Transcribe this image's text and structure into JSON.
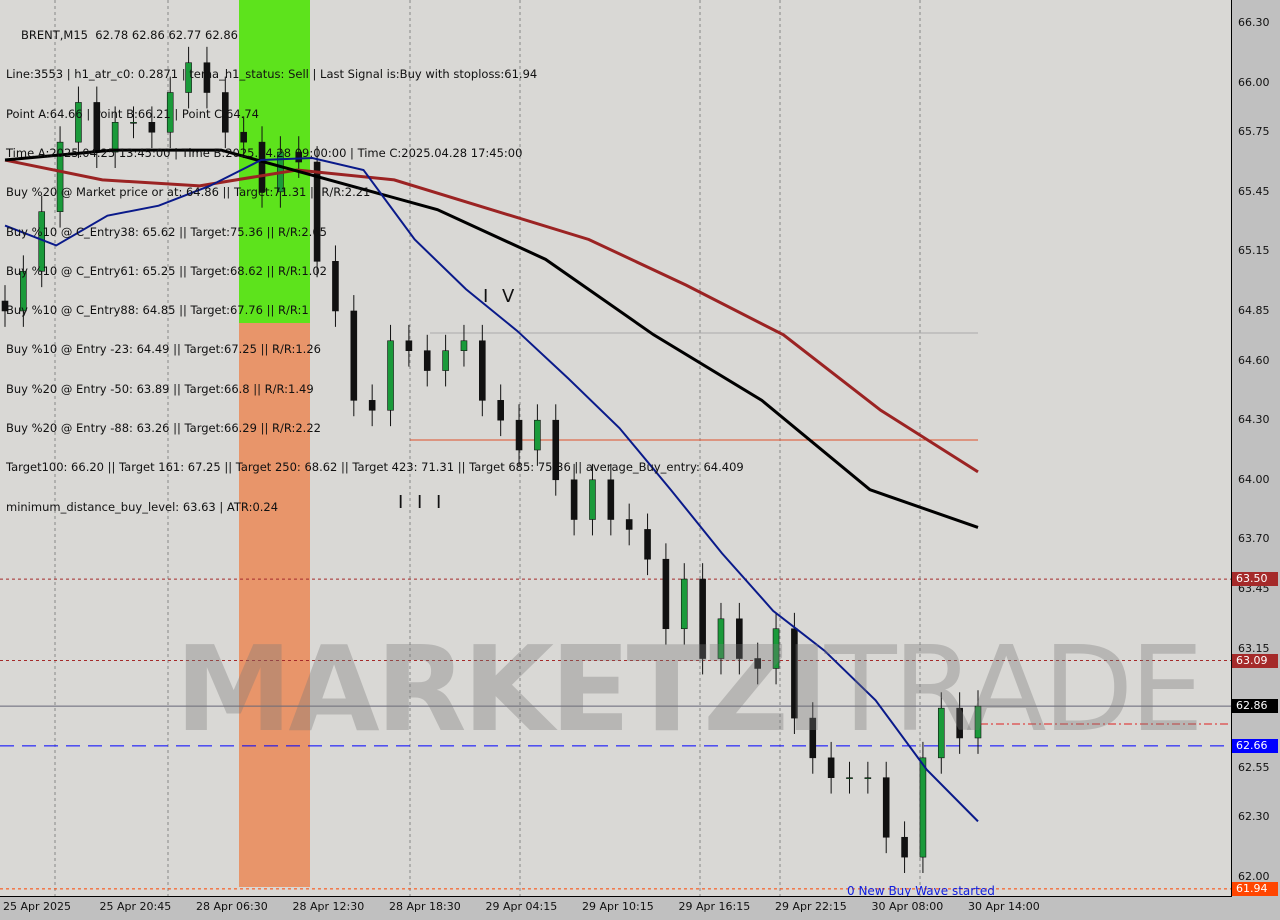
{
  "header": {
    "title": "BRENT,M15  62.78 62.86 62.77 62.86",
    "lines": [
      "Line:3553 | h1_atr_c0: 0.2871 | tema_h1_status: Sell | Last Signal is:Buy with stoploss:61.94",
      "Point A:64.66 | Point B:66.21 | Point C:64.74",
      "Time A:2025.04.25 13:45:00 | Time B:2025.04.28 09:00:00 | Time C:2025.04.28 17:45:00",
      "Buy %20 @ Market price or at: 64.86 || Target:71.31 || R/R:2.21",
      "Buy %10 @ C_Entry38: 65.62 || Target:75.36 || R/R:2.65",
      "Buy %10 @ C_Entry61: 65.25 || Target:68.62 || R/R:1.02",
      "Buy %10 @ C_Entry88: 64.85 || Target:67.76 || R/R:1",
      "Buy %10 @ Entry -23: 64.49 || Target:67.25 || R/R:1.26",
      "Buy %20 @ Entry -50: 63.89 || Target:66.8 || R/R:1.49",
      "Buy %20 @ Entry -88: 63.26 || Target:66.29 || R/R:2.22",
      "Target100: 66.20 || Target 161: 67.25 || Target 250: 68.62 || Target 423: 71.31 || Target 685: 75.36 || average_Buy_entry: 64.409",
      "minimum_distance_buy_level: 63.63 | ATR:0.24"
    ]
  },
  "annotations": {
    "wave_iv": "I V",
    "wave_iii": "I I I",
    "buy_wave": "0 New Buy Wave started"
  },
  "watermark": {
    "bold": "MARKETZI",
    "light": "TRADE"
  },
  "colors": {
    "background": "#d9d8d5",
    "bull": "#1a9a3a",
    "bear": "#111111",
    "ma_blue": "#0a1a8a",
    "ma_black": "#000000",
    "ma_red": "#9b2323",
    "zone_green": "#5de31c",
    "zone_orange": "#e8956a"
  },
  "chart_data": {
    "type": "candlestick",
    "symbol": "BRENT",
    "timeframe": "M15",
    "ylim": [
      61.9,
      66.45
    ],
    "y_ticks": [
      "66.30",
      "66.00",
      "65.75",
      "65.45",
      "65.15",
      "64.85",
      "64.60",
      "64.30",
      "64.00",
      "63.70",
      "63.45",
      "63.15",
      "62.55",
      "62.30",
      "62.00"
    ],
    "x_ticks": [
      "25 Apr 2025",
      "25 Apr 20:45",
      "28 Apr 06:30",
      "28 Apr 12:30",
      "28 Apr 18:30",
      "29 Apr 04:15",
      "29 Apr 10:15",
      "29 Apr 16:15",
      "29 Apr 22:15",
      "30 Apr 08:00",
      "30 Apr 14:00"
    ],
    "closes": [
      64.85,
      65.05,
      65.35,
      65.7,
      65.9,
      65.65,
      65.8,
      65.8,
      65.75,
      65.95,
      66.1,
      65.95,
      65.75,
      65.7,
      65.45,
      65.65,
      65.6,
      65.1,
      64.85,
      64.4,
      64.35,
      64.7,
      64.65,
      64.55,
      64.65,
      64.7,
      64.4,
      64.3,
      64.15,
      64.3,
      64.0,
      63.8,
      64.0,
      63.8,
      63.75,
      63.6,
      63.25,
      63.5,
      63.1,
      63.3,
      63.1,
      63.05,
      63.25,
      62.8,
      62.6,
      62.5,
      62.5,
      62.5,
      62.2,
      62.1,
      62.6,
      62.85,
      62.7,
      62.86
    ],
    "ma_blue": [
      65.28,
      65.18,
      65.33,
      65.38,
      65.48,
      65.61,
      65.62,
      65.56,
      65.21,
      64.96,
      64.75,
      64.51,
      64.26,
      63.95,
      63.63,
      63.34,
      63.14,
      62.89,
      62.54,
      62.28
    ],
    "ma_red": [
      65.61,
      65.51,
      65.48,
      65.56,
      65.51,
      65.36,
      65.21,
      64.98,
      64.73,
      64.35,
      64.04
    ],
    "ma_black": [
      65.61,
      65.66,
      65.66,
      65.51,
      65.36,
      65.11,
      64.73,
      64.4,
      63.95,
      63.76
    ],
    "levels": [
      {
        "label": "63.50",
        "price": 63.5,
        "color": "#a52a2a",
        "style": "dotted"
      },
      {
        "label": "63.09",
        "price": 63.09,
        "color": "#a52a2a",
        "style": "dotted"
      },
      {
        "label": "62.86",
        "price": 62.86,
        "color": "#000000",
        "style": "solid"
      },
      {
        "label": "62.66",
        "price": 62.66,
        "color": "#0000ff",
        "style": "dashed"
      },
      {
        "label": "61.94",
        "price": 61.94,
        "color": "#ff4500",
        "style": "dotted"
      }
    ],
    "point_c_level": 64.2,
    "grid": false
  }
}
